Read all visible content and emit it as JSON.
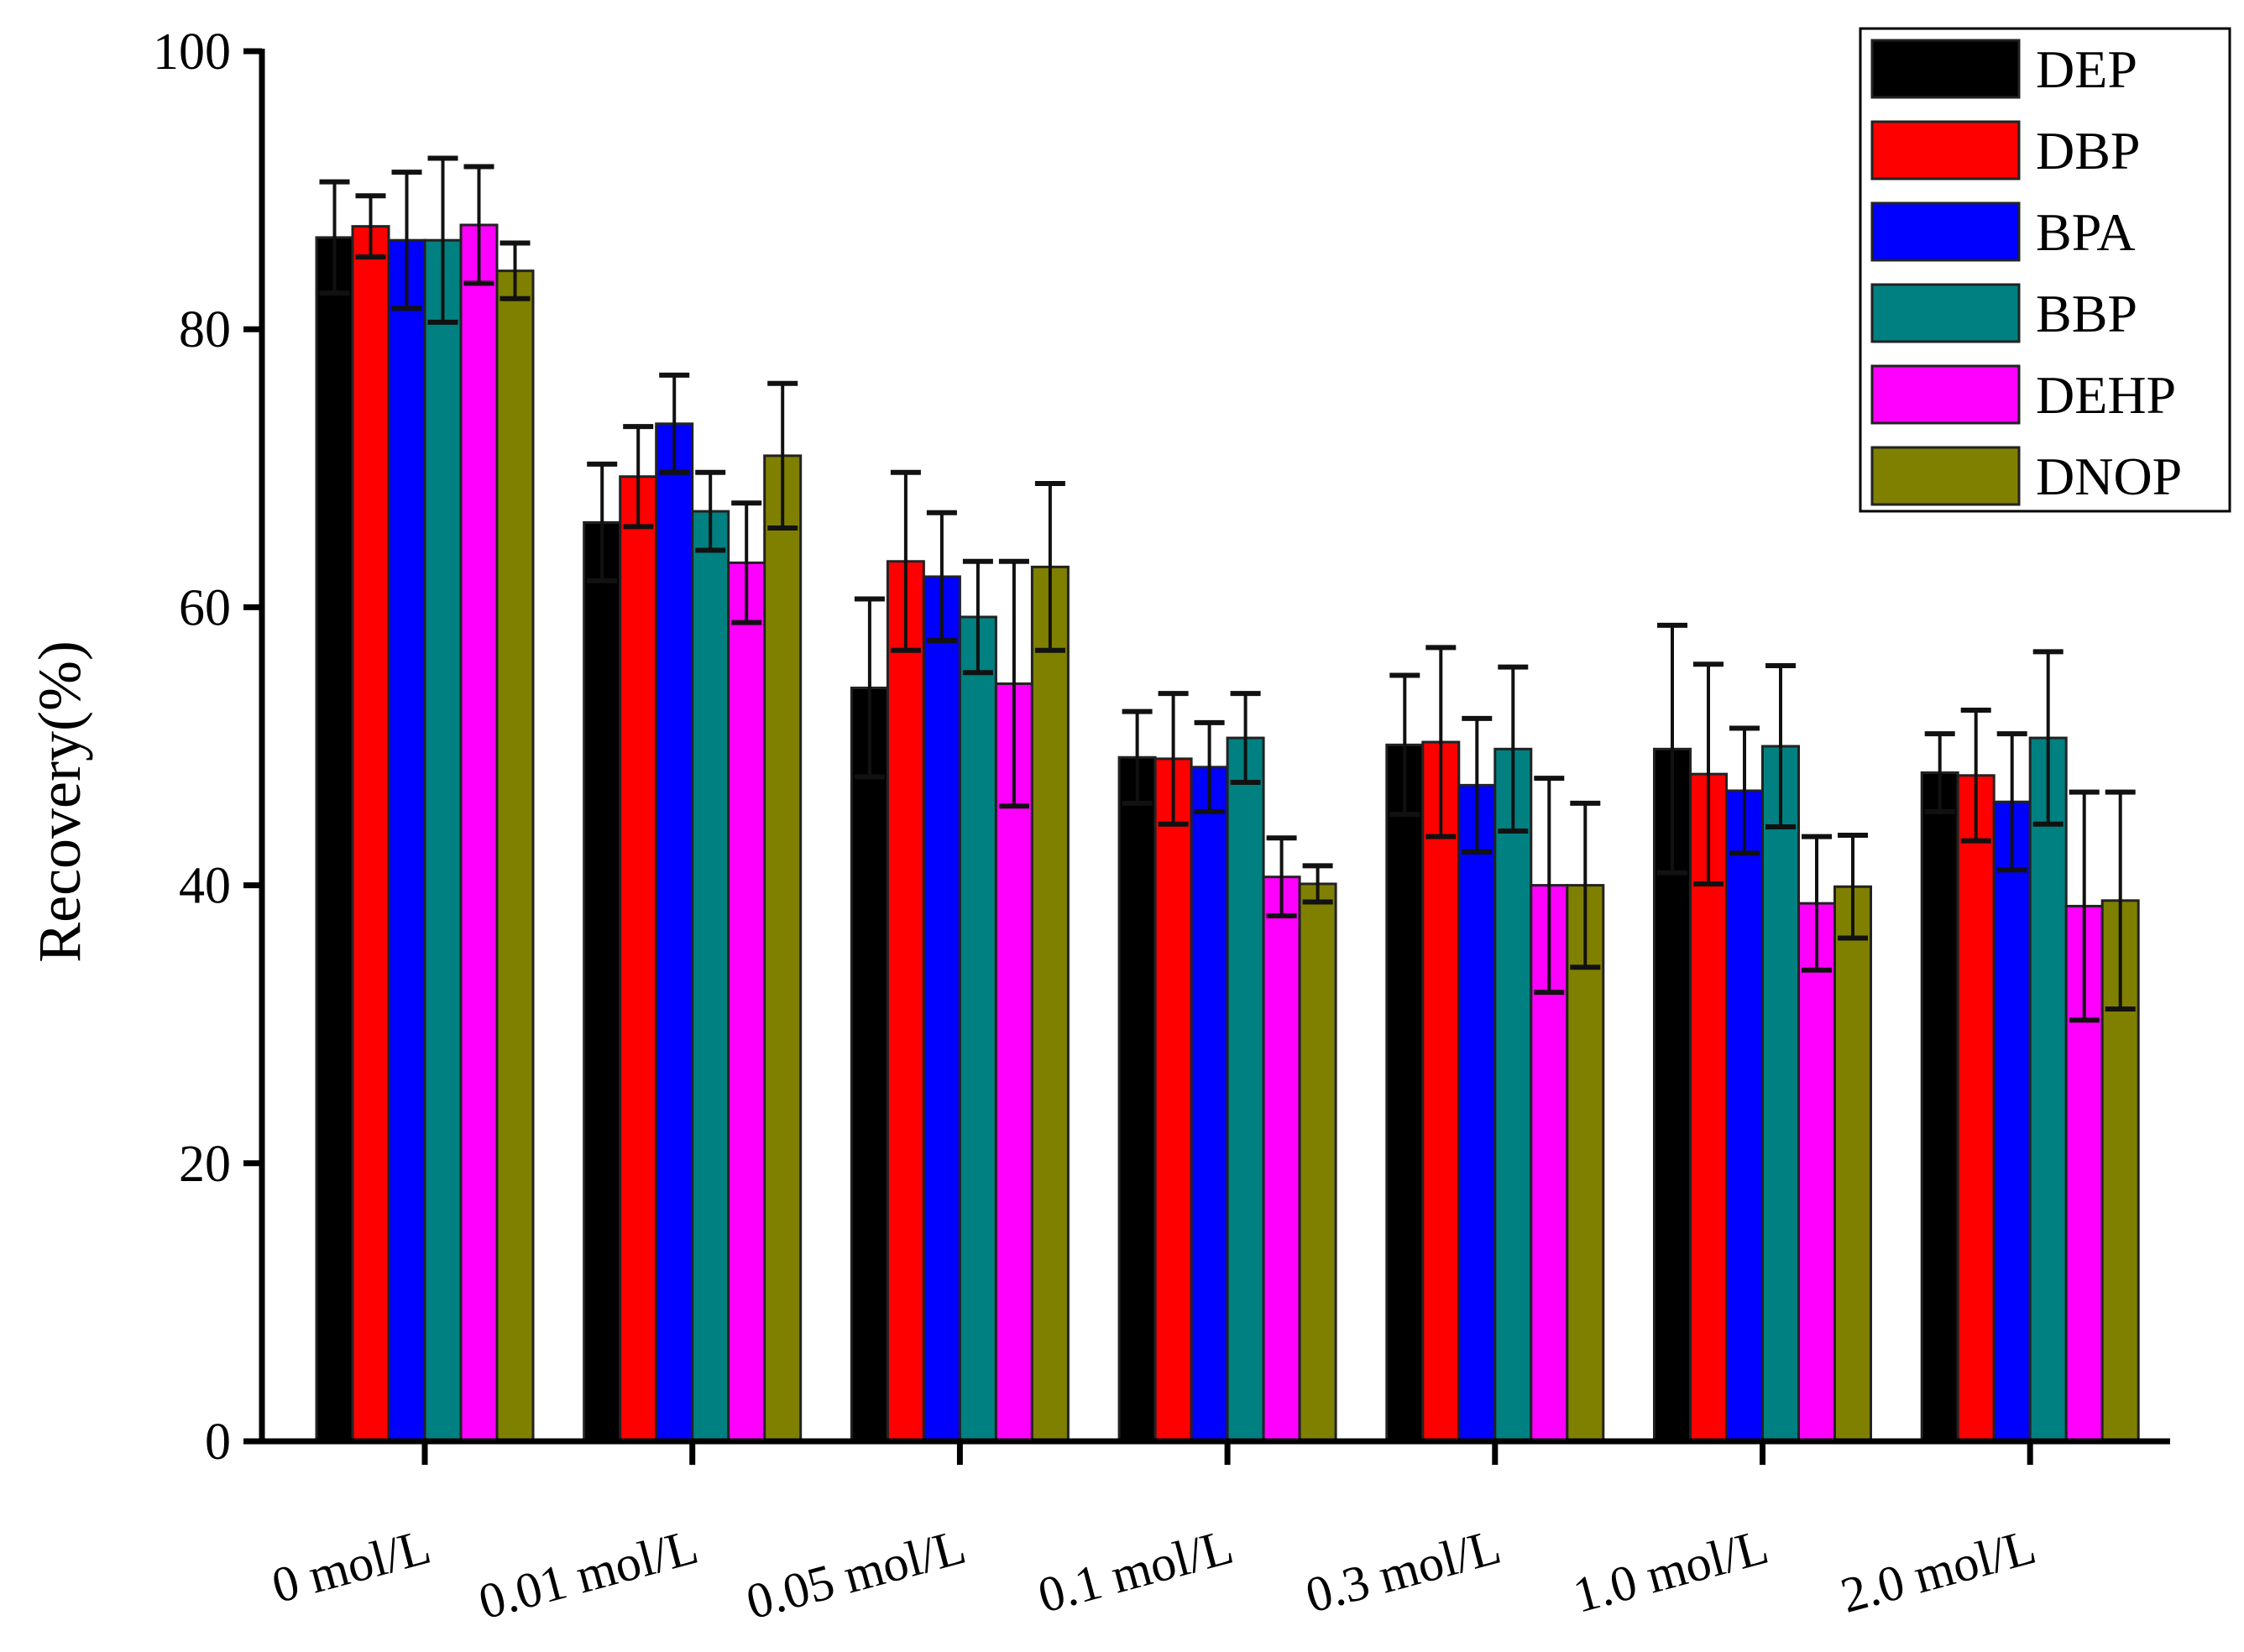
{
  "chart_data": {
    "type": "bar",
    "title": "",
    "xlabel": "",
    "ylabel": "Recovery(%)",
    "ylim": [
      0,
      100
    ],
    "yticks": [
      "0",
      "20",
      "40",
      "60",
      "80",
      "100"
    ],
    "grid": false,
    "legend_position": "top-right",
    "categories": [
      "0 mol/L",
      "0.01 mol/L",
      "0.05 mol/L",
      "0.1 mol/L",
      "0.3 mol/L",
      "1.0 mol/L",
      "2.0 mol/L"
    ],
    "series": [
      {
        "name": "DEP",
        "color": "#000000",
        "values": [
          86.6,
          66.1,
          54.2,
          49.2,
          50.1,
          49.8,
          48.1
        ],
        "errors": [
          4.0,
          4.2,
          6.4,
          3.3,
          5.0,
          8.9,
          2.8
        ]
      },
      {
        "name": "DBP",
        "color": "#ff0000",
        "values": [
          87.4,
          69.4,
          63.3,
          49.1,
          50.3,
          48.0,
          47.9
        ],
        "errors": [
          2.2,
          3.6,
          6.4,
          4.7,
          6.8,
          7.9,
          4.7
        ]
      },
      {
        "name": "BPA",
        "color": "#0000ff",
        "values": [
          86.4,
          73.2,
          62.2,
          48.5,
          47.2,
          46.8,
          46.0
        ],
        "errors": [
          4.9,
          3.5,
          4.6,
          3.2,
          4.8,
          4.5,
          4.9
        ]
      },
      {
        "name": "BBP",
        "color": "#008080",
        "values": [
          86.4,
          66.9,
          59.3,
          50.6,
          49.8,
          50.0,
          50.6
        ],
        "errors": [
          5.9,
          2.8,
          4.0,
          3.2,
          5.9,
          5.8,
          6.2
        ]
      },
      {
        "name": "DEHP",
        "color": "#ff00ff",
        "values": [
          87.5,
          63.2,
          54.5,
          40.6,
          40.0,
          38.7,
          38.5
        ],
        "errors": [
          4.2,
          4.3,
          8.8,
          2.8,
          7.7,
          4.8,
          8.2
        ]
      },
      {
        "name": "DNOP",
        "color": "#808000",
        "values": [
          84.2,
          70.9,
          62.9,
          40.1,
          40.0,
          39.9,
          38.9
        ],
        "errors": [
          2.0,
          5.2,
          6.0,
          1.3,
          5.9,
          3.7,
          7.8
        ]
      }
    ]
  }
}
